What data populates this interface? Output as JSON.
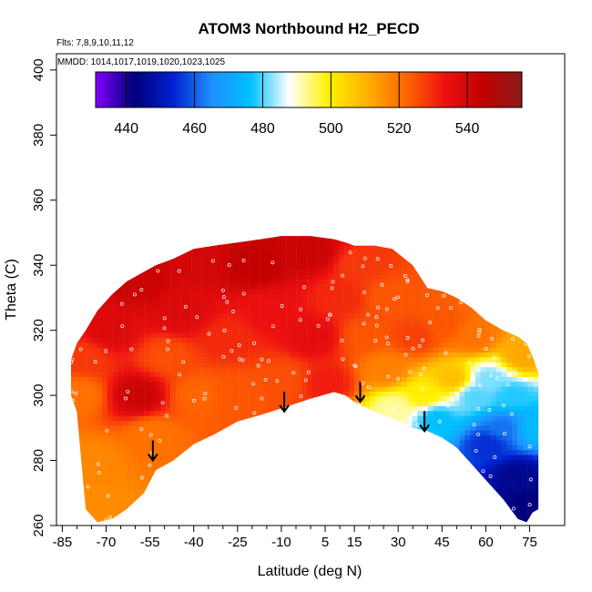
{
  "chart_data": {
    "type": "heatmap",
    "title": "ATOM3 Northbound H2_PECD",
    "annotations": [
      "Flts: 7,8,9,10,11,12",
      "MMDD: 1014,1017,1019,1020,1023,1025"
    ],
    "xlabel": "Latitude (deg N)",
    "ylabel": "Theta (C)",
    "xlim": [
      -87,
      87
    ],
    "ylim": [
      260,
      405
    ],
    "x_ticks": [
      -85,
      -70,
      -55,
      -40,
      -25,
      -10,
      5,
      15,
      30,
      45,
      60,
      75
    ],
    "y_ticks": [
      260,
      280,
      300,
      320,
      340,
      360,
      380,
      400
    ],
    "colorbar": {
      "range": [
        431,
        556
      ],
      "ticks": [
        440,
        460,
        480,
        500,
        520,
        540
      ],
      "colors": [
        "#8000ff",
        "#00007a",
        "#0020d0",
        "#1e90ff",
        "#00c0ff",
        "#ffffff",
        "#fff200",
        "#ffb000",
        "#ff6600",
        "#ee1111",
        "#c00000",
        "#8b1a1a"
      ]
    },
    "envelope": {
      "x": [
        -82,
        -80,
        -77,
        -73,
        -68,
        -63,
        -57,
        -53,
        -47,
        -40,
        -33,
        -25,
        -17,
        -10,
        0,
        8,
        12,
        15,
        17,
        22,
        28,
        35,
        40,
        45,
        50,
        55,
        60,
        66,
        71,
        74,
        76,
        78
      ],
      "top": [
        311,
        316,
        320,
        326,
        331,
        335,
        338,
        340,
        342,
        345,
        346,
        347,
        348,
        349,
        349,
        348,
        347,
        346,
        346,
        346,
        345,
        340,
        333,
        332,
        330,
        327,
        323,
        320,
        318,
        316,
        312,
        307
      ],
      "bottom": [
        300,
        295,
        265,
        261,
        262,
        265,
        270,
        277,
        280,
        285,
        288,
        292,
        294,
        296,
        299,
        301,
        300,
        298,
        297,
        295,
        293,
        290,
        289,
        287,
        284,
        279,
        274,
        268,
        262,
        261,
        264,
        265
      ]
    },
    "field_nodes": [
      {
        "x": -80,
        "y": 300,
        "v": 520
      },
      {
        "x": -75,
        "y": 280,
        "v": 517
      },
      {
        "x": -72,
        "y": 265,
        "v": 516
      },
      {
        "x": -78,
        "y": 312,
        "v": 528
      },
      {
        "x": -70,
        "y": 320,
        "v": 538
      },
      {
        "x": -60,
        "y": 300,
        "v": 542
      },
      {
        "x": -60,
        "y": 335,
        "v": 542
      },
      {
        "x": -55,
        "y": 288,
        "v": 520
      },
      {
        "x": -50,
        "y": 312,
        "v": 525
      },
      {
        "x": -45,
        "y": 325,
        "v": 538
      },
      {
        "x": -40,
        "y": 300,
        "v": 522
      },
      {
        "x": -40,
        "y": 342,
        "v": 540
      },
      {
        "x": -30,
        "y": 318,
        "v": 530
      },
      {
        "x": -25,
        "y": 300,
        "v": 524
      },
      {
        "x": -20,
        "y": 340,
        "v": 544
      },
      {
        "x": -15,
        "y": 326,
        "v": 534
      },
      {
        "x": -10,
        "y": 305,
        "v": 525
      },
      {
        "x": 0,
        "y": 318,
        "v": 536
      },
      {
        "x": 0,
        "y": 344,
        "v": 542
      },
      {
        "x": 5,
        "y": 304,
        "v": 532
      },
      {
        "x": 10,
        "y": 330,
        "v": 530
      },
      {
        "x": 15,
        "y": 340,
        "v": 528
      },
      {
        "x": 18,
        "y": 318,
        "v": 524
      },
      {
        "x": 25,
        "y": 308,
        "v": 518
      },
      {
        "x": 25,
        "y": 330,
        "v": 524
      },
      {
        "x": 28,
        "y": 296,
        "v": 492
      },
      {
        "x": 35,
        "y": 318,
        "v": 527
      },
      {
        "x": 38,
        "y": 300,
        "v": 500
      },
      {
        "x": 42,
        "y": 293,
        "v": 476
      },
      {
        "x": 45,
        "y": 322,
        "v": 524
      },
      {
        "x": 48,
        "y": 305,
        "v": 508
      },
      {
        "x": 55,
        "y": 300,
        "v": 480
      },
      {
        "x": 55,
        "y": 318,
        "v": 520
      },
      {
        "x": 60,
        "y": 305,
        "v": 482
      },
      {
        "x": 60,
        "y": 285,
        "v": 455
      },
      {
        "x": 65,
        "y": 290,
        "v": 462
      },
      {
        "x": 68,
        "y": 300,
        "v": 478
      },
      {
        "x": 70,
        "y": 275,
        "v": 445
      },
      {
        "x": 72,
        "y": 312,
        "v": 512
      },
      {
        "x": 76,
        "y": 290,
        "v": 475
      },
      {
        "x": 76,
        "y": 266,
        "v": 442
      }
    ],
    "markers": [
      {
        "type": "arrow",
        "x": -54,
        "y": 280
      },
      {
        "type": "arrow",
        "x": -9,
        "y": 295
      },
      {
        "type": "arrow",
        "x": 17,
        "y": 298
      },
      {
        "type": "arrow",
        "x": 39,
        "y": 289
      }
    ]
  }
}
